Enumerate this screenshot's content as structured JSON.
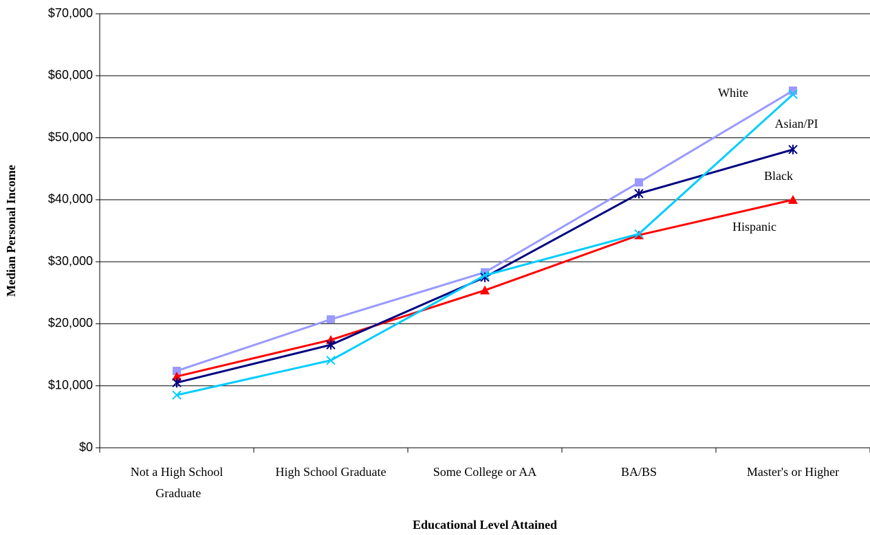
{
  "chart_data": {
    "type": "line",
    "x_label": "Educational Level Attained",
    "y_label": "Median Personal Income",
    "categories": [
      "Not a High School Graduate",
      "High School Graduate",
      "Some College or AA",
      "BA/BS",
      "Master's or Higher"
    ],
    "series": [
      {
        "name": "White",
        "color": "#9999ff",
        "marker": "square",
        "values": [
          12400,
          20700,
          28300,
          42800,
          57600
        ]
      },
      {
        "name": "Hispanic",
        "color": "#ff0000",
        "marker": "triangle",
        "values": [
          11500,
          17400,
          25400,
          34300,
          40000
        ]
      },
      {
        "name": "Black",
        "color": "#000080",
        "marker": "star",
        "values": [
          10500,
          16600,
          27500,
          41000,
          48100
        ]
      },
      {
        "name": "Asian/PI",
        "color": "#00ccff",
        "marker": "x",
        "values": [
          8500,
          14100,
          27800,
          34500,
          57000
        ]
      }
    ],
    "ylim": [
      0,
      70000
    ],
    "yticks": [
      {
        "value": 0,
        "label": "$0"
      },
      {
        "value": 10000,
        "label": "$10,000"
      },
      {
        "value": 20000,
        "label": "$20,000"
      },
      {
        "value": 30000,
        "label": "$30,000"
      },
      {
        "value": 40000,
        "label": "$40,000"
      },
      {
        "value": 50000,
        "label": "$50,000"
      },
      {
        "value": 60000,
        "label": "$60,000"
      },
      {
        "value": 70000,
        "label": "$70,000"
      }
    ],
    "grid": true
  }
}
